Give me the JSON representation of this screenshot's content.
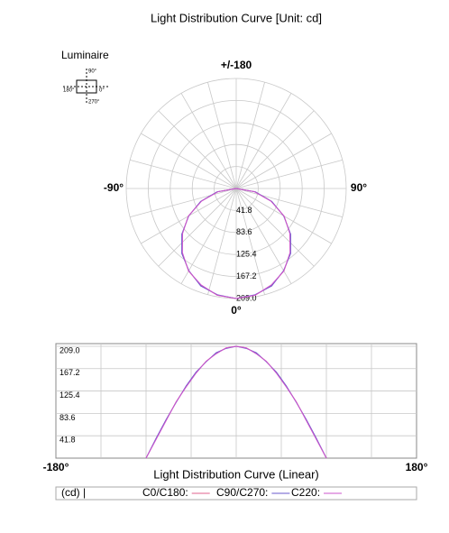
{
  "title": "Light Distribution Curve   [Unit: cd]",
  "luminaire": {
    "label": "Luminaire",
    "top": "90°",
    "left": "180°",
    "right": "0°",
    "bottom": "270°"
  },
  "chart_data": [
    {
      "type": "polar",
      "angle_ticks": [
        {
          "value": 180,
          "label": "+/-180"
        },
        {
          "value": -90,
          "label": "-90°"
        },
        {
          "value": 90,
          "label": "90°"
        },
        {
          "value": 0,
          "label": "0°"
        }
      ],
      "rlim": [
        0,
        209
      ],
      "rticks": [
        41.8,
        83.6,
        125.4,
        167.2,
        {
          "value": 209,
          "label": "209.0"
        }
      ],
      "angles": [
        -90,
        -80,
        -70,
        -60,
        -50,
        -40,
        -30,
        -20,
        -10,
        0,
        10,
        20,
        30,
        40,
        50,
        60,
        70,
        80,
        90
      ],
      "series": [
        {
          "color": "#e0608c",
          "values": [
            0,
            36,
            71,
            105,
            134,
            160,
            181,
            196,
            206,
            209,
            206,
            196,
            181,
            160,
            134,
            105,
            71,
            36,
            0
          ]
        },
        {
          "color": "#6a5acd",
          "values": [
            0,
            37,
            72,
            104,
            135,
            161,
            180,
            197,
            205,
            209,
            205,
            197,
            180,
            161,
            135,
            104,
            72,
            37,
            0
          ]
        },
        {
          "color": "#cc55cc",
          "values": [
            0,
            35,
            70,
            105,
            133,
            159,
            181,
            195,
            206,
            209,
            206,
            195,
            181,
            159,
            133,
            105,
            70,
            35,
            0
          ]
        }
      ]
    },
    {
      "type": "line",
      "xlabel": "Light Distribution Curve (Linear)",
      "unit_label": "(cd) |",
      "xlim": [
        -180,
        180
      ],
      "xticks": [
        {
          "value": -180,
          "label": "-180°"
        },
        {
          "value": 180,
          "label": "180°"
        }
      ],
      "xgrid": [
        -135,
        -90,
        -45,
        0,
        45,
        90,
        135
      ],
      "ylim": [
        0,
        214
      ],
      "yticks": [
        41.8,
        83.6,
        125.4,
        167.2,
        {
          "value": 209,
          "label": "209.0"
        }
      ],
      "x": [
        -90,
        -80,
        -70,
        -60,
        -50,
        -40,
        -30,
        -20,
        -10,
        0,
        10,
        20,
        30,
        40,
        50,
        60,
        70,
        80,
        90
      ],
      "series": [
        {
          "name": "C0/C180:",
          "color": "#e0608c",
          "values": [
            0,
            36,
            71,
            105,
            134,
            160,
            181,
            196,
            206,
            209,
            206,
            196,
            181,
            160,
            134,
            105,
            71,
            36,
            0
          ]
        },
        {
          "name": "C90/C270:",
          "color": "#6a5acd",
          "values": [
            0,
            37,
            72,
            104,
            135,
            161,
            180,
            197,
            205,
            209,
            205,
            197,
            180,
            161,
            135,
            104,
            72,
            37,
            0
          ]
        },
        {
          "name": "C220:",
          "color": "#cc55cc",
          "values": [
            0,
            35,
            70,
            105,
            133,
            159,
            181,
            195,
            206,
            209,
            206,
            195,
            181,
            159,
            133,
            105,
            70,
            35,
            0
          ]
        }
      ]
    }
  ]
}
